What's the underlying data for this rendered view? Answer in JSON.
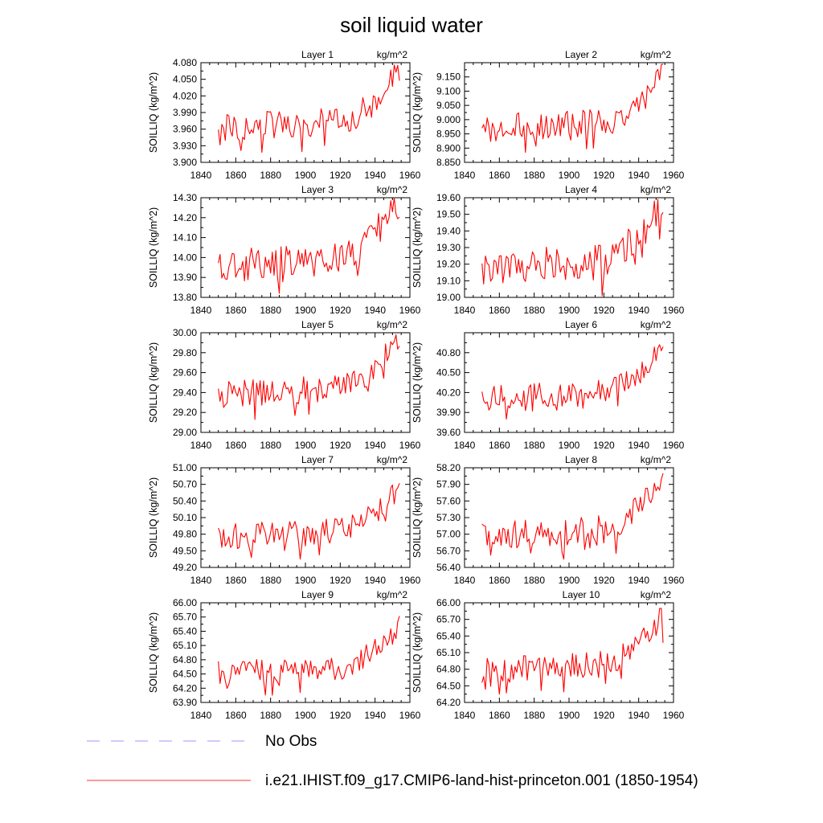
{
  "figure": {
    "title": "soil liquid water"
  },
  "legend": {
    "items": [
      {
        "label": "No Obs",
        "color": "#9999ff",
        "style": "dashed"
      },
      {
        "label": "i.e21.IHIST.f09_g17.CMIP6-land-hist-princeton.001 (1850-1954)",
        "color": "#ff3333",
        "style": "solid"
      }
    ]
  },
  "chart_data": [
    {
      "type": "line",
      "title": "Layer 1",
      "units": "kg/m^2",
      "ylabel": "SOILLIQ  (kg/m^2)",
      "xlim": [
        1840,
        1960
      ],
      "xticks": [
        1840,
        1860,
        1880,
        1900,
        1920,
        1940,
        1960
      ],
      "ylim": [
        3.9,
        4.08
      ],
      "yticks": [
        "3.900",
        "3.930",
        "3.960",
        "3.990",
        "4.020",
        "4.050",
        "4.080"
      ],
      "series": [
        {
          "x_start": 1850,
          "x_end": 1954,
          "color": "#ff0000",
          "min": 3.918,
          "max": 4.076
        }
      ]
    },
    {
      "type": "line",
      "title": "Layer 2",
      "units": "kg/m^2",
      "ylabel": "SOILLIQ  (kg/m^2)",
      "xlim": [
        1840,
        1960
      ],
      "xticks": [
        1840,
        1860,
        1880,
        1900,
        1920,
        1940,
        1960
      ],
      "ylim": [
        8.85,
        9.2
      ],
      "yticks": [
        "8.850",
        "8.900",
        "8.950",
        "9.000",
        "9.050",
        "9.100",
        "9.150"
      ],
      "series": [
        {
          "x_start": 1850,
          "x_end": 1954,
          "color": "#ff0000",
          "min": 8.885,
          "max": 9.195
        }
      ]
    },
    {
      "type": "line",
      "title": "Layer 3",
      "units": "kg/m^2",
      "ylabel": "SOILLIQ  (kg/m^2)",
      "xlim": [
        1840,
        1960
      ],
      "xticks": [
        1840,
        1860,
        1880,
        1900,
        1920,
        1940,
        1960
      ],
      "ylim": [
        13.8,
        14.3
      ],
      "yticks": [
        "13.80",
        "13.90",
        "14.00",
        "14.10",
        "14.20",
        "14.30"
      ],
      "series": [
        {
          "x_start": 1850,
          "x_end": 1954,
          "color": "#ff0000",
          "min": 13.82,
          "max": 14.3
        }
      ]
    },
    {
      "type": "line",
      "title": "Layer 4",
      "units": "kg/m^2",
      "ylabel": "SOILLIQ  (kg/m^2)",
      "xlim": [
        1840,
        1960
      ],
      "xticks": [
        1840,
        1860,
        1880,
        1900,
        1920,
        1940,
        1960
      ],
      "ylim": [
        19.0,
        19.6
      ],
      "yticks": [
        "19.00",
        "19.10",
        "19.20",
        "19.30",
        "19.40",
        "19.50",
        "19.60"
      ],
      "series": [
        {
          "x_start": 1850,
          "x_end": 1954,
          "color": "#ff0000",
          "min": 19.01,
          "max": 19.59
        }
      ]
    },
    {
      "type": "line",
      "title": "Layer 5",
      "units": "kg/m^2",
      "ylabel": "SOILLIQ  (kg/m^2)",
      "xlim": [
        1840,
        1960
      ],
      "xticks": [
        1840,
        1860,
        1880,
        1900,
        1920,
        1940,
        1960
      ],
      "ylim": [
        29.0,
        30.0
      ],
      "yticks": [
        "29.00",
        "29.20",
        "29.40",
        "29.60",
        "29.80",
        "30.00"
      ],
      "series": [
        {
          "x_start": 1850,
          "x_end": 1954,
          "color": "#ff0000",
          "min": 29.13,
          "max": 29.98
        }
      ]
    },
    {
      "type": "line",
      "title": "Layer 6",
      "units": "kg/m^2",
      "ylabel": "SOILLIQ  (kg/m^2)",
      "xlim": [
        1840,
        1960
      ],
      "xticks": [
        1840,
        1860,
        1880,
        1900,
        1920,
        1940,
        1960
      ],
      "ylim": [
        39.6,
        41.1
      ],
      "yticks": [
        "39.60",
        "39.90",
        "40.20",
        "40.50",
        "40.80"
      ],
      "series": [
        {
          "x_start": 1850,
          "x_end": 1954,
          "color": "#ff0000",
          "min": 39.8,
          "max": 40.92
        }
      ]
    },
    {
      "type": "line",
      "title": "Layer 7",
      "units": "kg/m^2",
      "ylabel": "SOILLIQ  (kg/m^2)",
      "xlim": [
        1840,
        1960
      ],
      "xticks": [
        1840,
        1860,
        1880,
        1900,
        1920,
        1940,
        1960
      ],
      "ylim": [
        49.2,
        51.0
      ],
      "yticks": [
        "49.20",
        "49.50",
        "49.80",
        "50.10",
        "50.40",
        "50.70",
        "51.00"
      ],
      "series": [
        {
          "x_start": 1850,
          "x_end": 1954,
          "color": "#ff0000",
          "min": 49.35,
          "max": 50.72
        }
      ]
    },
    {
      "type": "line",
      "title": "Layer 8",
      "units": "kg/m^2",
      "ylabel": "SOILLIQ  (kg/m^2)",
      "xlim": [
        1840,
        1960
      ],
      "xticks": [
        1840,
        1860,
        1880,
        1900,
        1920,
        1940,
        1960
      ],
      "ylim": [
        56.4,
        58.2
      ],
      "yticks": [
        "56.40",
        "56.70",
        "57.00",
        "57.30",
        "57.60",
        "57.90",
        "58.20"
      ],
      "series": [
        {
          "x_start": 1850,
          "x_end": 1954,
          "color": "#ff0000",
          "min": 56.55,
          "max": 58.1
        }
      ]
    },
    {
      "type": "line",
      "title": "Layer 9",
      "units": "kg/m^2",
      "ylabel": "SOILLIQ  (kg/m^2)",
      "xlim": [
        1840,
        1960
      ],
      "xticks": [
        1840,
        1860,
        1880,
        1900,
        1920,
        1940,
        1960
      ],
      "ylim": [
        63.9,
        66.0
      ],
      "yticks": [
        "63.90",
        "64.20",
        "64.50",
        "64.80",
        "65.10",
        "65.40",
        "65.70",
        "66.00"
      ],
      "series": [
        {
          "x_start": 1850,
          "x_end": 1954,
          "color": "#ff0000",
          "min": 64.05,
          "max": 65.72
        }
      ]
    },
    {
      "type": "line",
      "title": "Layer 10",
      "units": "kg/m^2",
      "ylabel": "SOILLIQ  (kg/m^2)",
      "xlim": [
        1840,
        1960
      ],
      "xticks": [
        1840,
        1860,
        1880,
        1900,
        1920,
        1940,
        1960
      ],
      "ylim": [
        64.2,
        66.0
      ],
      "yticks": [
        "64.20",
        "64.50",
        "64.80",
        "65.10",
        "65.40",
        "65.70",
        "66.00"
      ],
      "series": [
        {
          "x_start": 1850,
          "x_end": 1954,
          "color": "#ff0000",
          "min": 64.35,
          "max": 65.9
        }
      ]
    }
  ]
}
